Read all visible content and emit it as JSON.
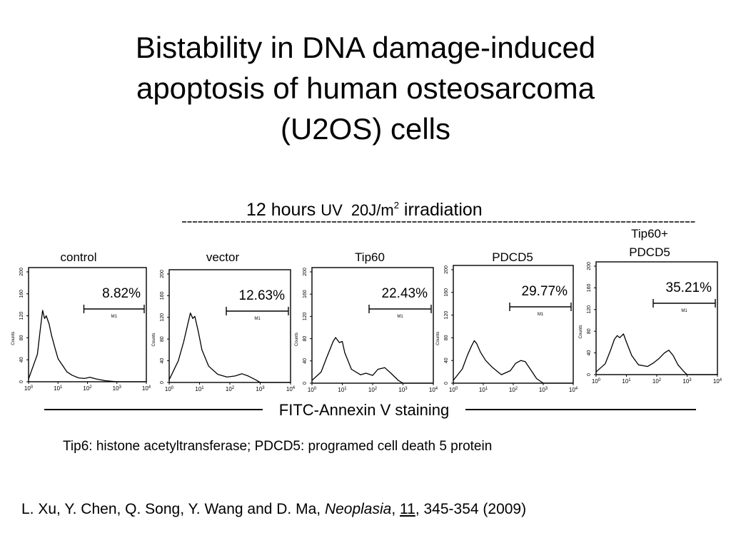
{
  "slide": {
    "title_lines": [
      "Bistability in DNA damage-induced",
      "apoptosis of human osteosarcoma",
      "(U2OS) cells"
    ],
    "footnote": "Tip6: histone acetyltransferase; PDCD5: programed cell death 5 protein",
    "citation": {
      "authors": "L. Xu, Y. Chen, Q. Song, Y. Wang and D. Ma, ",
      "journal": "Neoplasia",
      "sep1": ", ",
      "volume": "11",
      "rest": ", 345-354 (2009)"
    }
  },
  "chart_data": {
    "type": "line",
    "header": {
      "prefix": "12 hours ",
      "uv": "UV",
      "dose": "20J/m",
      "dose_superscript": "2",
      "suffix": " irradiation"
    },
    "xlabel": "FITC-Annexin V staining",
    "ylabel": "Counts",
    "x_scale": "log",
    "xlim": [
      1,
      10000
    ],
    "x_ticks": [
      "10",
      "10",
      "10",
      "10",
      "10"
    ],
    "x_tick_exponents": [
      "0",
      "1",
      "2",
      "3",
      "4"
    ],
    "gate_label": "M1",
    "gate_range": [
      100,
      10000
    ],
    "panels": [
      {
        "name": "control",
        "percent": "8.82%",
        "y_ticks": [
          "0",
          "40",
          "80",
          "120",
          "160",
          "200"
        ],
        "ylim": [
          0,
          200
        ],
        "x": [
          1,
          2,
          2.5,
          3,
          3.5,
          4,
          5,
          6,
          8,
          10,
          15,
          20,
          30,
          50,
          80,
          120,
          200,
          400,
          1000,
          10000
        ],
        "y": [
          5,
          50,
          95,
          130,
          115,
          120,
          105,
          85,
          60,
          42,
          28,
          18,
          12,
          7,
          6,
          8,
          5,
          2,
          0,
          0
        ]
      },
      {
        "name": "vector",
        "percent": "12.63%",
        "y_ticks": [
          "0",
          "40",
          "80",
          "120",
          "160",
          "200"
        ],
        "ylim": [
          0,
          200
        ],
        "x": [
          1,
          2,
          3,
          4,
          5,
          6,
          7,
          9,
          12,
          20,
          40,
          80,
          150,
          250,
          400,
          700,
          1000,
          10000
        ],
        "y": [
          5,
          40,
          75,
          105,
          128,
          118,
          122,
          95,
          60,
          30,
          15,
          10,
          12,
          16,
          12,
          5,
          0,
          0
        ]
      },
      {
        "name": "Tip60",
        "percent": "22.43%",
        "y_ticks": [
          "0",
          "40",
          "80",
          "120",
          "160",
          "200"
        ],
        "ylim": [
          0,
          200
        ],
        "x": [
          1,
          2,
          3,
          5,
          6,
          8,
          10,
          12,
          20,
          40,
          60,
          100,
          150,
          250,
          400,
          700,
          1000,
          10000
        ],
        "y": [
          5,
          20,
          45,
          75,
          82,
          73,
          75,
          55,
          25,
          15,
          18,
          14,
          25,
          28,
          18,
          5,
          0,
          0
        ]
      },
      {
        "name": "PDCD5",
        "percent": "29.77%",
        "y_ticks": [
          "0",
          "40",
          "80",
          "120",
          "160",
          "200"
        ],
        "ylim": [
          0,
          200
        ],
        "x": [
          1,
          2,
          3,
          4,
          5,
          6,
          8,
          12,
          20,
          40,
          80,
          120,
          180,
          250,
          400,
          600,
          1000,
          10000
        ],
        "y": [
          5,
          25,
          50,
          65,
          75,
          70,
          55,
          40,
          28,
          15,
          22,
          35,
          40,
          38,
          22,
          8,
          0,
          0
        ]
      },
      {
        "name": "Tip60+ PDCD5",
        "name_lines": [
          "Tip60+",
          "PDCD5"
        ],
        "percent": "35.21%",
        "y_ticks": [
          "0",
          "40",
          "80",
          "120",
          "160",
          "200"
        ],
        "ylim": [
          0,
          200
        ],
        "x": [
          1,
          2,
          3,
          4,
          5,
          6,
          8,
          10,
          15,
          25,
          50,
          80,
          120,
          180,
          250,
          350,
          500,
          800,
          1000,
          10000
        ],
        "y": [
          5,
          20,
          45,
          65,
          72,
          68,
          75,
          60,
          35,
          18,
          15,
          22,
          30,
          40,
          45,
          35,
          18,
          5,
          0,
          0
        ]
      }
    ]
  }
}
